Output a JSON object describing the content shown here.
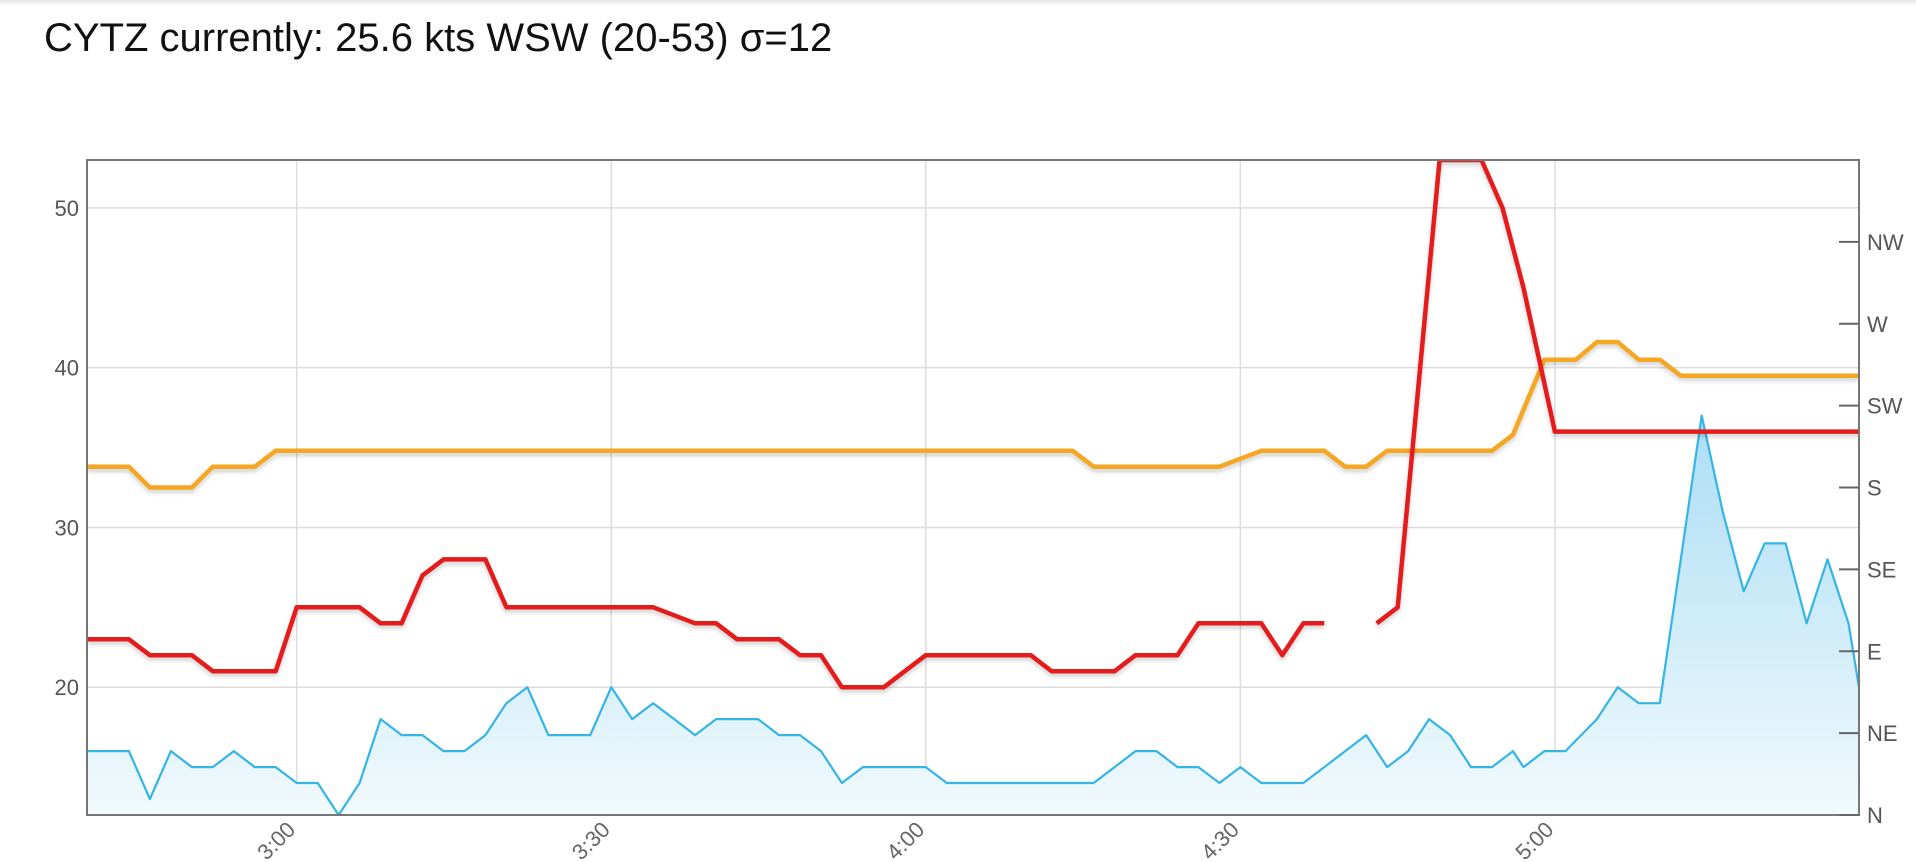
{
  "header": {
    "text": "CYTZ currently: 25.6 kts WSW (20-53) σ=12"
  },
  "colors": {
    "avg_wind": "#33b5e5",
    "avg_wind_fill_top": "#a8dcf4",
    "gust": "#e41a1c",
    "direction": "#f5a623",
    "grid": "#dddddd",
    "frame": "#777777"
  },
  "chart_data": {
    "type": "line",
    "title": "",
    "xlabel": "",
    "ylabel": "",
    "x_domain": [
      "2:40",
      "5:29"
    ],
    "xlim_minutes": [
      160,
      329
    ],
    "x_ticks": [
      "3:00",
      "3:30",
      "4:00",
      "4:30",
      "5:00"
    ],
    "x_tick_minutes": [
      180,
      210,
      240,
      270,
      300
    ],
    "ylim": [
      12,
      53
    ],
    "y_ticks": [
      20,
      30,
      40,
      50
    ],
    "y2_ticks": [
      "N",
      "NE",
      "E",
      "SE",
      "S",
      "SW",
      "W",
      "NW"
    ],
    "y2_tick_degrees": [
      0,
      45,
      90,
      135,
      180,
      225,
      270,
      315
    ],
    "y2_range_degrees": [
      0,
      360
    ],
    "grid": true,
    "legend": "none",
    "series": [
      {
        "key": "avg",
        "style": "area",
        "points": [
          [
            160,
            16
          ],
          [
            164,
            16
          ],
          [
            166,
            13
          ],
          [
            168,
            16
          ],
          [
            170,
            15
          ],
          [
            172,
            15
          ],
          [
            174,
            16
          ],
          [
            176,
            15
          ],
          [
            178,
            15
          ],
          [
            180,
            14
          ],
          [
            182,
            14
          ],
          [
            184,
            12
          ],
          [
            186,
            14
          ],
          [
            188,
            18
          ],
          [
            190,
            17
          ],
          [
            192,
            17
          ],
          [
            194,
            16
          ],
          [
            196,
            16
          ],
          [
            198,
            17
          ],
          [
            200,
            19
          ],
          [
            202,
            20
          ],
          [
            204,
            17
          ],
          [
            206,
            17
          ],
          [
            208,
            17
          ],
          [
            210,
            20
          ],
          [
            212,
            18
          ],
          [
            214,
            19
          ],
          [
            216,
            18
          ],
          [
            218,
            17
          ],
          [
            220,
            18
          ],
          [
            222,
            18
          ],
          [
            224,
            18
          ],
          [
            226,
            17
          ],
          [
            228,
            17
          ],
          [
            230,
            16
          ],
          [
            232,
            14
          ],
          [
            234,
            15
          ],
          [
            236,
            15
          ],
          [
            238,
            15
          ],
          [
            240,
            15
          ],
          [
            242,
            14
          ],
          [
            244,
            14
          ],
          [
            246,
            14
          ],
          [
            248,
            14
          ],
          [
            250,
            14
          ],
          [
            252,
            14
          ],
          [
            254,
            14
          ],
          [
            256,
            14
          ],
          [
            258,
            15
          ],
          [
            260,
            16
          ],
          [
            262,
            16
          ],
          [
            264,
            15
          ],
          [
            266,
            15
          ],
          [
            268,
            14
          ],
          [
            270,
            15
          ],
          [
            272,
            14
          ],
          [
            274,
            14
          ],
          [
            276,
            14
          ],
          [
            278,
            15
          ],
          [
            280,
            16
          ],
          [
            282,
            17
          ],
          [
            284,
            15
          ],
          [
            286,
            16
          ],
          [
            288,
            18
          ],
          [
            290,
            17
          ],
          [
            292,
            15
          ],
          [
            294,
            15
          ],
          [
            296,
            16
          ],
          [
            297,
            15
          ],
          [
            299,
            16
          ],
          [
            301,
            16
          ],
          [
            304,
            18
          ],
          [
            306,
            20
          ],
          [
            308,
            19
          ],
          [
            310,
            19
          ],
          [
            312,
            28
          ],
          [
            314,
            37
          ],
          [
            316,
            31
          ],
          [
            318,
            26
          ],
          [
            320,
            29
          ],
          [
            322,
            29
          ],
          [
            324,
            24
          ],
          [
            326,
            28
          ],
          [
            328,
            24
          ],
          [
            329,
            20
          ]
        ]
      },
      {
        "key": "gust",
        "style": "line",
        "points": [
          [
            160,
            23
          ],
          [
            164,
            23
          ],
          [
            166,
            22
          ],
          [
            170,
            22
          ],
          [
            172,
            21
          ],
          [
            178,
            21
          ],
          [
            180,
            25
          ],
          [
            186,
            25
          ],
          [
            188,
            24
          ],
          [
            190,
            24
          ],
          [
            192,
            27
          ],
          [
            194,
            28
          ],
          [
            198,
            28
          ],
          [
            200,
            25
          ],
          [
            206,
            25
          ],
          [
            208,
            25
          ],
          [
            210,
            25
          ],
          [
            212,
            25
          ],
          [
            214,
            25
          ],
          [
            218,
            24
          ],
          [
            220,
            24
          ],
          [
            222,
            23
          ],
          [
            226,
            23
          ],
          [
            228,
            22
          ],
          [
            230,
            22
          ],
          [
            232,
            20
          ],
          [
            236,
            20
          ],
          [
            238,
            21
          ],
          [
            240,
            22
          ],
          [
            246,
            22
          ],
          [
            250,
            22
          ],
          [
            252,
            21
          ],
          [
            258,
            21
          ],
          [
            260,
            22
          ],
          [
            262,
            22
          ],
          [
            264,
            22
          ],
          [
            266,
            24
          ],
          [
            272,
            24
          ],
          [
            274,
            22
          ],
          [
            276,
            24
          ],
          [
            278,
            24
          ],
          null,
          [
            283,
            24
          ],
          [
            285,
            25
          ],
          [
            289,
            53
          ],
          [
            293,
            53
          ],
          [
            295,
            50
          ],
          [
            297,
            45
          ],
          [
            300,
            36
          ],
          [
            304,
            36
          ],
          [
            307,
            36
          ],
          [
            309,
            36
          ],
          [
            311,
            36
          ],
          [
            313,
            36
          ],
          [
            315,
            36
          ],
          [
            318,
            36
          ],
          [
            321,
            36
          ],
          [
            324,
            36
          ],
          [
            327,
            36
          ],
          [
            329,
            36
          ]
        ]
      },
      {
        "key": "direction",
        "style": "line",
        "points": [
          [
            160,
            33.8
          ],
          [
            164,
            33.8
          ],
          [
            166,
            32.5
          ],
          [
            170,
            32.5
          ],
          [
            172,
            33.8
          ],
          [
            176,
            33.8
          ],
          [
            178,
            34.8
          ],
          [
            180,
            34.8
          ],
          [
            186,
            34.8
          ],
          [
            190,
            34.8
          ],
          [
            200,
            34.8
          ],
          [
            210,
            34.8
          ],
          [
            220,
            34.8
          ],
          [
            230,
            34.8
          ],
          [
            240,
            34.8
          ],
          [
            250,
            34.8
          ],
          [
            254,
            34.8
          ],
          [
            256,
            33.8
          ],
          [
            262,
            33.8
          ],
          [
            266,
            33.8
          ],
          [
            268,
            33.8
          ],
          [
            272,
            34.8
          ],
          [
            278,
            34.8
          ],
          [
            280,
            33.8
          ],
          [
            282,
            33.8
          ],
          [
            284,
            34.8
          ],
          [
            286,
            34.8
          ],
          [
            290,
            34.8
          ],
          [
            294,
            34.8
          ],
          [
            296,
            35.8
          ],
          [
            299,
            40.5
          ],
          [
            302,
            40.5
          ],
          [
            304,
            41.6
          ],
          [
            306,
            41.6
          ],
          [
            308,
            40.5
          ],
          [
            310,
            40.5
          ],
          [
            312,
            39.5
          ],
          [
            314,
            39.5
          ],
          [
            317,
            39.5
          ],
          [
            320,
            39.5
          ],
          [
            324,
            39.5
          ],
          [
            329,
            39.5
          ]
        ]
      }
    ]
  }
}
